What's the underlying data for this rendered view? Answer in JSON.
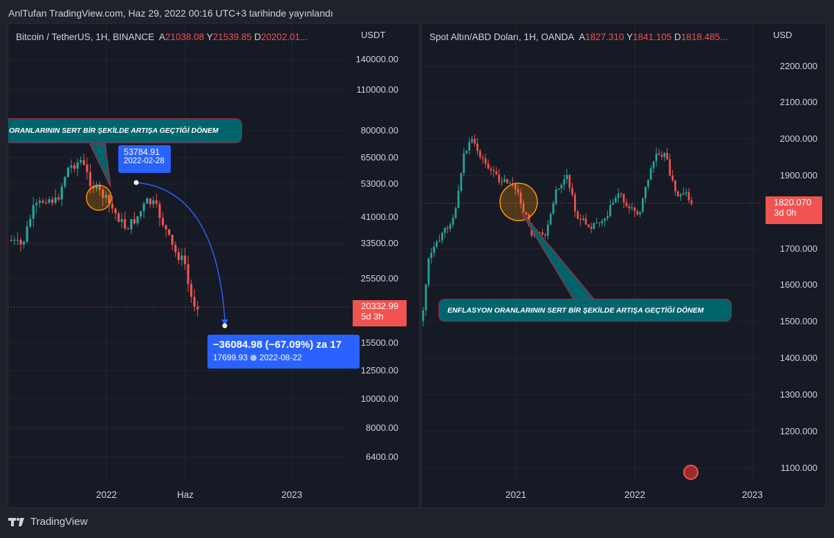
{
  "header": {
    "text": "AnlTufan TradingView.com, Haz 29, 2022 00:16 UTC+3 tarihinde yayınlandı"
  },
  "left": {
    "symbol": "Bitcoin / TetherUS, 1H, BINANCE",
    "o_label": "A",
    "o": "21038.08",
    "h_label": "Y",
    "h": "21539.85",
    "c_label": "D",
    "c": "20202.01...",
    "currency": "USDT",
    "price_ticks": [
      "140000.00",
      "110000.00",
      "80000.00",
      "65000.00",
      "53000.00",
      "41000.00",
      "33500.00",
      "25500.00",
      "15500.00",
      "12500.00",
      "10000.00",
      "8000.00",
      "6400.00"
    ],
    "x_ticks": [
      "2022",
      "Haz",
      "2023"
    ],
    "last_price": "20332.99",
    "last_time": "5d 3h",
    "callout": "ORANLARININ SERT BİR ŞEKİLDE ARTIŞA GEÇTİĞİ DÖNEM",
    "point_price": "53784.91",
    "point_date": "2022-02-28",
    "measure_main": "−36084.98 (−67.09%) za 17",
    "measure_price": "17699.93",
    "measure_date": "2022-08-22",
    "colors": {
      "up": "#26a69a",
      "down": "#ef5350",
      "accent": "#2962ff"
    }
  },
  "right": {
    "symbol": "Spot Altın/ABD Doları, 1H, OANDA",
    "o_label": "A",
    "o": "1827.310",
    "h_label": "Y",
    "h": "1841.105",
    "c_label": "D",
    "c": "1818.485...",
    "currency": "USD",
    "price_ticks": [
      "2200.000",
      "2100.000",
      "2000.000",
      "1900.000",
      "1700.000",
      "1600.000",
      "1500.000",
      "1400.000",
      "1300.000",
      "1200.000",
      "1100.000"
    ],
    "x_ticks": [
      "2021",
      "2022",
      "2023"
    ],
    "last_price": "1820.070",
    "last_time": "3d 0h",
    "callout": "ENFLASYON ORANLARININ SERT BİR ŞEKİLDE ARTIŞA GEÇTİĞİ DÖNEM"
  },
  "footer": {
    "brand": "TradingView",
    "logo_icon": "tradingview-logo-icon"
  }
}
